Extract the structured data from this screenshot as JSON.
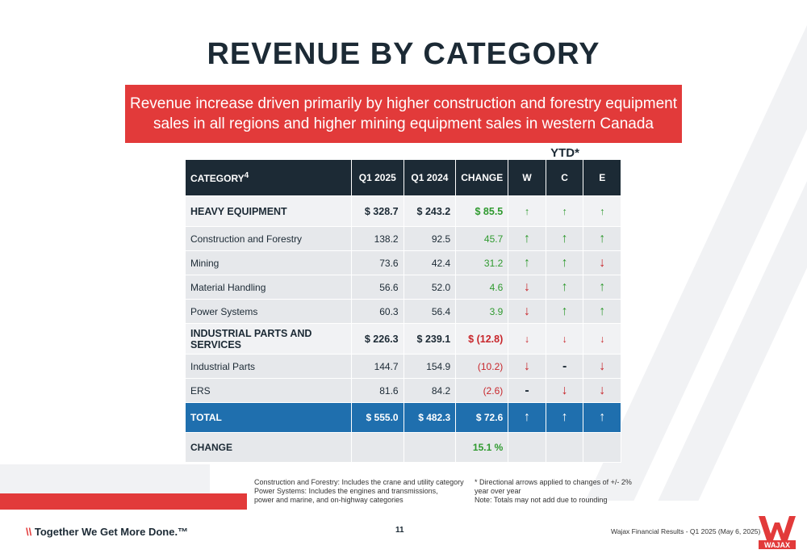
{
  "title": "REVENUE BY CATEGORY",
  "banner": {
    "line1": "Revenue increase driven primarily by higher construction and forestry equipment",
    "line2": "sales in all regions and higher mining equipment sales in western Canada"
  },
  "ytd_label": "YTD*",
  "table": {
    "headers": {
      "category": "CATEGORY",
      "category_sup": "4",
      "q1_2025": "Q1 2025",
      "q1_2024": "Q1 2024",
      "change": "CHANGE",
      "w": "W",
      "c": "C",
      "e": "E"
    },
    "rows": [
      {
        "label": "HEAVY EQUIPMENT",
        "q1_2025": "$  328.7",
        "q1_2024": "$  243.2",
        "change": "$  85.5",
        "w": "↑",
        "c": "↑",
        "e": "↑"
      },
      {
        "label": "Construction and Forestry",
        "q1_2025": "138.2",
        "q1_2024": "92.5",
        "change": "45.7",
        "w": "↑",
        "c": "↑",
        "e": "↑"
      },
      {
        "label": "Mining",
        "q1_2025": "73.6",
        "q1_2024": "42.4",
        "change": "31.2",
        "w": "↑",
        "c": "↑",
        "e": "↓"
      },
      {
        "label": "Material Handling",
        "q1_2025": "56.6",
        "q1_2024": "52.0",
        "change": "4.6",
        "w": "↓",
        "c": "↑",
        "e": "↑"
      },
      {
        "label": "Power Systems",
        "q1_2025": "60.3",
        "q1_2024": "56.4",
        "change": "3.9",
        "w": "↓",
        "c": "↑",
        "e": "↑"
      },
      {
        "label": "INDUSTRIAL PARTS AND SERVICES",
        "q1_2025": "$  226.3",
        "q1_2024": "$  239.1",
        "change": "$  (12.8)",
        "w": "↓",
        "c": "↓",
        "e": "↓"
      },
      {
        "label": "Industrial Parts",
        "q1_2025": "144.7",
        "q1_2024": "154.9",
        "change": "(10.2)",
        "w": "↓",
        "c": "-",
        "e": "↓"
      },
      {
        "label": "ERS",
        "q1_2025": "81.6",
        "q1_2024": "84.2",
        "change": "(2.6)",
        "w": "-",
        "c": "↓",
        "e": "↓"
      },
      {
        "label": "TOTAL",
        "q1_2025": "$  555.0",
        "q1_2024": "$  482.3",
        "change": "$  72.6",
        "w": "↑",
        "c": "↑",
        "e": "↑"
      },
      {
        "label": "CHANGE",
        "change": "15.1 %"
      }
    ]
  },
  "notes_left": [
    "Construction and Forestry: Includes the crane and utility category",
    "Power Systems: Includes the engines and transmissions,",
    "power and marine, and on-highway categories"
  ],
  "notes_right": [
    "* Directional arrows applied to changes of +/- 2%",
    "year over year",
    "Note: Totals may not add due to rounding"
  ],
  "footer": {
    "tagline_slash": "\\\\",
    "tagline": "Together We Get More Done.™",
    "page_number": "11",
    "right_text": "Wajax Financial Results - Q1 2025 (May 6, 2025)",
    "logo_text": "WAJAX"
  },
  "colors": {
    "accent_red": "#e23a3a",
    "header_navy": "#1c2a35",
    "total_blue": "#1f6fae",
    "positive_green": "#2f9a2f",
    "negative_red": "#c8262b"
  }
}
